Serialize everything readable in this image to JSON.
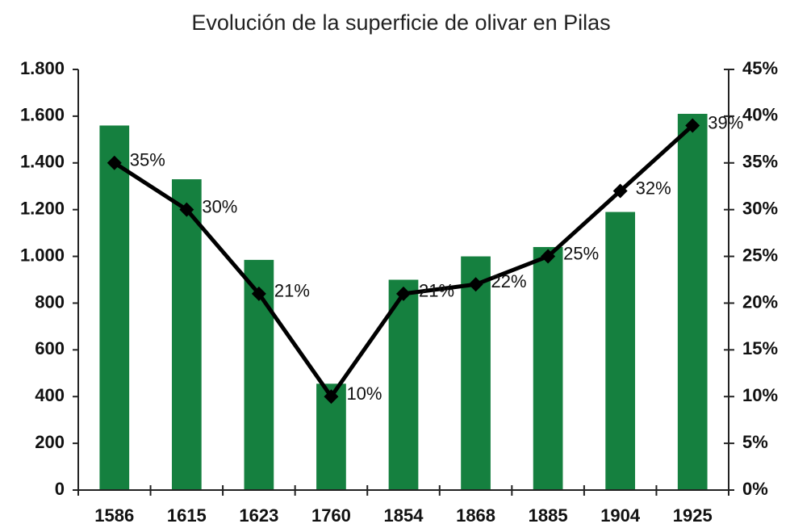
{
  "chart_data": {
    "type": "bar",
    "title": "Evolución de la superficie de olivar en Pilas",
    "categories": [
      "1586",
      "1615",
      "1623",
      "1760",
      "1854",
      "1868",
      "1885",
      "1904",
      "1925"
    ],
    "series": [
      {
        "color": "#15803f",
        "values": [
          1560,
          1330,
          985,
          455,
          900,
          1000,
          1040,
          1190,
          1610
        ]
      },
      {
        "type": "line",
        "axis": "y2",
        "color": "#000000",
        "values": [
          35,
          30,
          21,
          10,
          21,
          22,
          25,
          32,
          39
        ],
        "value_labels": [
          "35%",
          "30%",
          "21%",
          "10%",
          "21%",
          "22%",
          "25%",
          "32%",
          "39%"
        ]
      }
    ],
    "ylim": [
      0,
      1800
    ],
    "yticks": [
      0,
      200,
      400,
      600,
      800,
      {
        "value": 1000,
        "label": "1.000"
      },
      {
        "value": 1200,
        "label": "1.200"
      },
      {
        "value": 1400,
        "label": "1.400"
      },
      {
        "value": 1600,
        "label": "1.600"
      },
      {
        "value": 1800,
        "label": "1.800"
      }
    ],
    "y2lim": [
      0,
      45
    ],
    "y2ticks": [
      {
        "value": 0,
        "label": "0%"
      },
      {
        "value": 5,
        "label": "5%"
      },
      {
        "value": 10,
        "label": "10%"
      },
      {
        "value": 15,
        "label": "15%"
      },
      {
        "value": 20,
        "label": "20%"
      },
      {
        "value": 25,
        "label": "25%"
      },
      {
        "value": 30,
        "label": "30%"
      },
      {
        "value": 35,
        "label": "35%"
      },
      {
        "value": 40,
        "label": "40%"
      },
      {
        "value": 45,
        "label": "45%"
      }
    ],
    "grid": false
  }
}
